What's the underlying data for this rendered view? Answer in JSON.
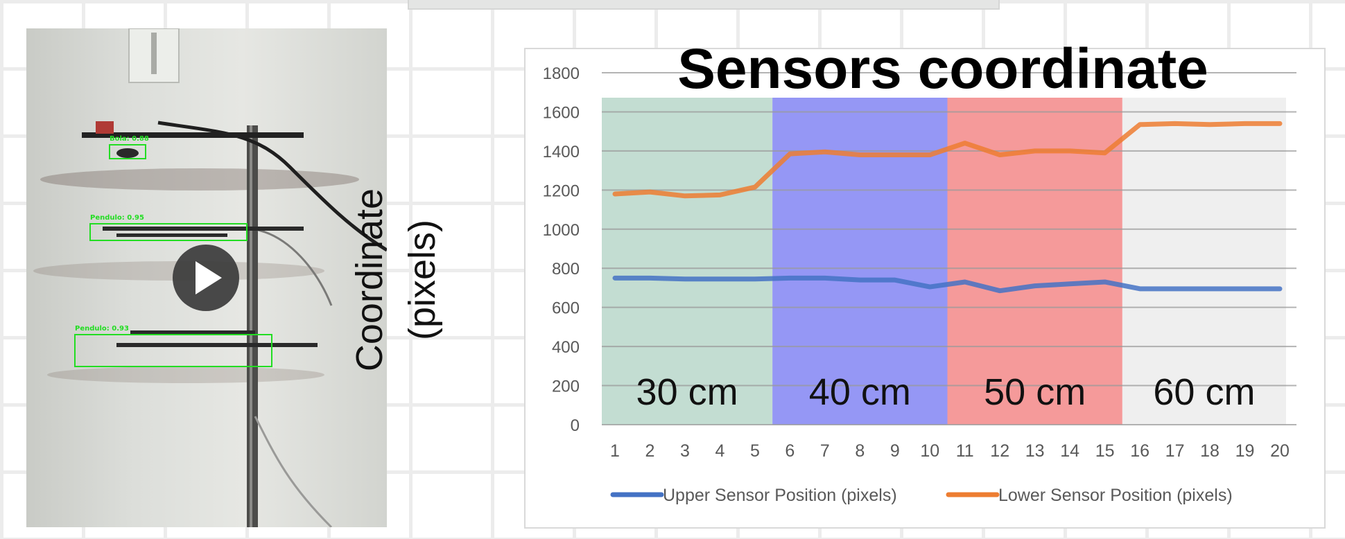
{
  "video": {
    "play_icon": "play-icon",
    "detections": [
      {
        "label": "Bola: 0.88"
      },
      {
        "label": "Pendulo: 0.95"
      },
      {
        "label": "Pendulo: 0.93"
      }
    ]
  },
  "chart_data": {
    "type": "line",
    "title": "Sensors coordinate",
    "ylabel_line1": "Coordinate",
    "ylabel_line2": "(pixels)",
    "xlabel": "",
    "ylim": [
      0,
      1800
    ],
    "yticks": [
      0,
      200,
      400,
      600,
      800,
      1000,
      1200,
      1400,
      1600,
      1800
    ],
    "x": [
      1,
      2,
      3,
      4,
      5,
      6,
      7,
      8,
      9,
      10,
      11,
      12,
      13,
      14,
      15,
      16,
      17,
      18,
      19,
      20
    ],
    "series": [
      {
        "name": "Upper Sensor Position (pixels)",
        "color": "#4472c4",
        "values": [
          750,
          750,
          745,
          745,
          745,
          750,
          750,
          740,
          740,
          705,
          730,
          685,
          710,
          720,
          730,
          695,
          695,
          695,
          695,
          695
        ]
      },
      {
        "name": "Lower Sensor Position (pixels)",
        "color": "#ed7d31",
        "values": [
          1180,
          1190,
          1170,
          1175,
          1215,
          1385,
          1395,
          1380,
          1380,
          1380,
          1440,
          1380,
          1400,
          1400,
          1390,
          1535,
          1540,
          1535,
          1540,
          1540
        ]
      }
    ],
    "regions": [
      {
        "label": "30 cm",
        "from": 1,
        "to": 5,
        "color": "#c3ddd2"
      },
      {
        "label": "40 cm",
        "from": 5,
        "to": 10,
        "color": "#9597f5"
      },
      {
        "label": "50 cm",
        "from": 10,
        "to": 15,
        "color": "#f59a9a"
      },
      {
        "label": "60 cm",
        "from": 15,
        "to": 20,
        "color": "#efefef"
      }
    ],
    "grid": true,
    "legend_position": "bottom"
  }
}
